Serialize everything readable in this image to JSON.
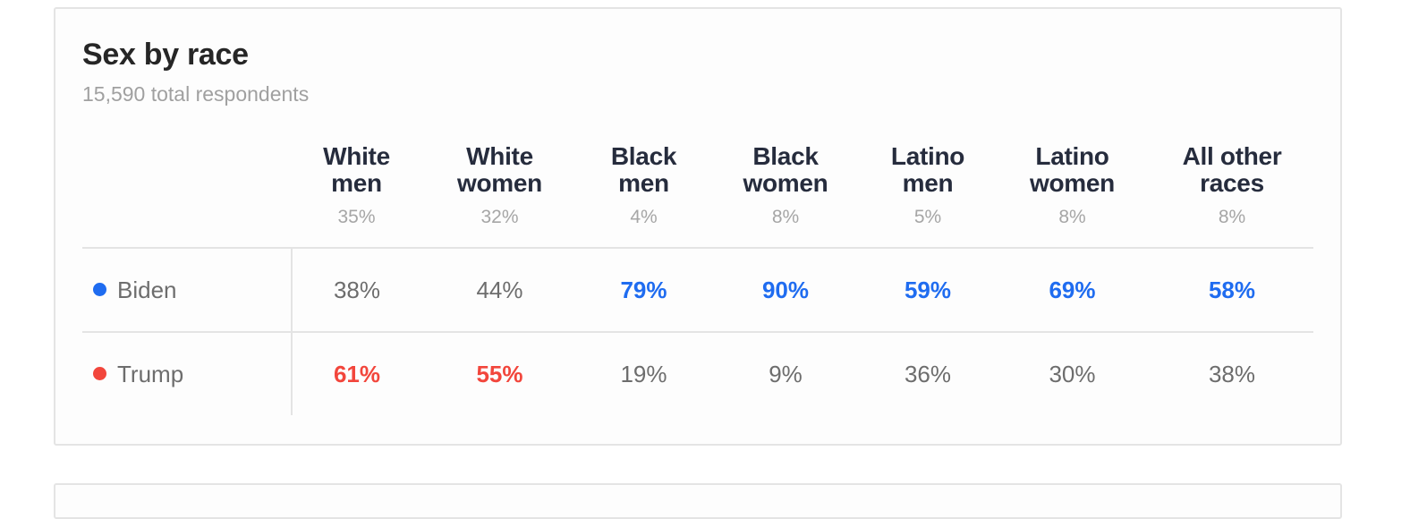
{
  "card": {
    "title": "Sex by race",
    "subtitle": "15,590 total respondents"
  },
  "colors": {
    "biden": "#1f6cf0",
    "trump": "#f2463c",
    "neutral": "#6d6d6d"
  },
  "columns": [
    {
      "line1": "White",
      "line2": "men",
      "share": "35%"
    },
    {
      "line1": "White",
      "line2": "women",
      "share": "32%"
    },
    {
      "line1": "Black",
      "line2": "men",
      "share": "4%"
    },
    {
      "line1": "Black",
      "line2": "women",
      "share": "8%"
    },
    {
      "line1": "Latino",
      "line2": "men",
      "share": "5%"
    },
    {
      "line1": "Latino",
      "line2": "women",
      "share": "8%"
    },
    {
      "line1": "All other",
      "line2": "races",
      "share": "8%"
    }
  ],
  "rows": [
    {
      "candidate": "Biden",
      "dot_icon": "blue-dot-icon",
      "values": [
        "38%",
        "44%",
        "79%",
        "90%",
        "59%",
        "69%",
        "58%"
      ],
      "winner": [
        false,
        false,
        true,
        true,
        true,
        true,
        true
      ]
    },
    {
      "candidate": "Trump",
      "dot_icon": "red-dot-icon",
      "values": [
        "61%",
        "55%",
        "19%",
        "9%",
        "36%",
        "30%",
        "38%"
      ],
      "winner": [
        true,
        true,
        false,
        false,
        false,
        false,
        false
      ]
    }
  ]
}
